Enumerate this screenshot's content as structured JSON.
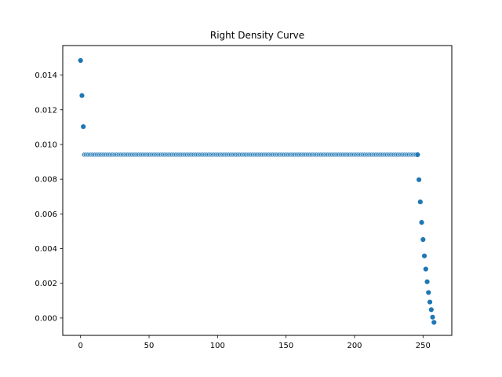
{
  "chart_data": {
    "type": "scatter",
    "title": "Right Density Curve",
    "xlabel": "",
    "ylabel": "",
    "xlim": [
      -13,
      271
    ],
    "ylim": [
      -0.001,
      0.0157
    ],
    "x_ticks": [
      0,
      50,
      100,
      150,
      200,
      250
    ],
    "x_tick_labels": [
      "0",
      "50",
      "100",
      "150",
      "200",
      "250"
    ],
    "y_ticks": [
      0,
      0.002,
      0.004,
      0.006,
      0.008,
      0.01,
      0.012,
      0.014
    ],
    "y_tick_labels": [
      "0.000",
      "0.002",
      "0.004",
      "0.006",
      "0.008",
      "0.010",
      "0.012",
      "0.014"
    ],
    "grid": false,
    "marker_color": "#1f77b4",
    "series": [
      {
        "flat_segment": {
          "x_start": 3,
          "x_end": 246,
          "y": 0.00941
        },
        "points": [
          {
            "x": 0,
            "y": 0.01484
          },
          {
            "x": 1,
            "y": 0.01282
          },
          {
            "x": 2,
            "y": 0.01103
          },
          {
            "x": 247,
            "y": 0.00797
          },
          {
            "x": 248,
            "y": 0.00669
          },
          {
            "x": 249,
            "y": 0.00551
          },
          {
            "x": 250,
            "y": 0.00452
          },
          {
            "x": 251,
            "y": 0.00358
          },
          {
            "x": 252,
            "y": 0.00282
          },
          {
            "x": 253,
            "y": 0.00209
          },
          {
            "x": 254,
            "y": 0.00147
          },
          {
            "x": 255,
            "y": 0.00092
          },
          {
            "x": 256,
            "y": 0.00048
          },
          {
            "x": 257,
            "y": 5e-05
          },
          {
            "x": 258,
            "y": -0.00025
          }
        ]
      }
    ]
  }
}
